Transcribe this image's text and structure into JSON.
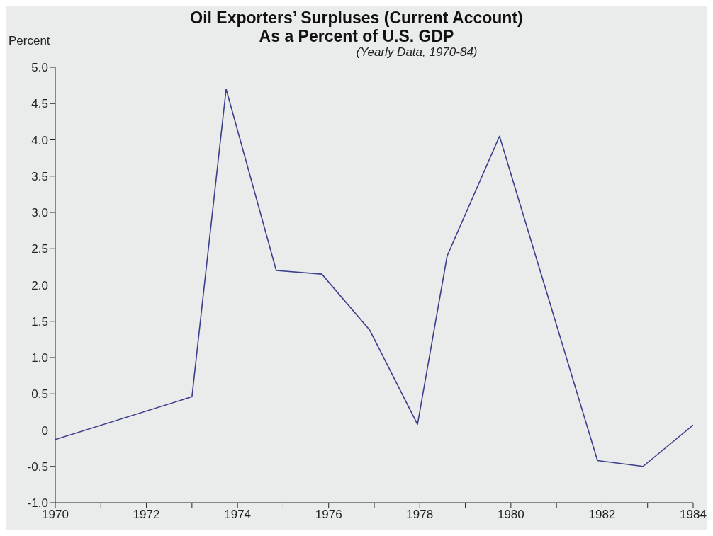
{
  "chart_data": {
    "type": "line",
    "title": "Oil Exporters’ Surpluses (Current Account)\nAs a Percent of U.S. GDP",
    "subtitle": "(Yearly Data, 1970-84)",
    "ylabel": "Percent",
    "x": [
      1970,
      1973,
      1973.75,
      1974.85,
      1975.85,
      1976.9,
      1977.95,
      1978.6,
      1979.75,
      1981.9,
      1982.9,
      1984
    ],
    "series": [
      {
        "color": "#3b3f8c",
        "values": [
          -0.13,
          0.46,
          4.7,
          2.2,
          2.15,
          1.38,
          0.08,
          2.4,
          4.05,
          -0.42,
          -0.5,
          0.07
        ]
      }
    ],
    "xlim": [
      1970,
      1984
    ],
    "xticks": [
      1970,
      {
        "value": 1971,
        "label": null
      },
      1972,
      {
        "value": 1973,
        "label": null
      },
      1974,
      {
        "value": 1975,
        "label": null
      },
      1976,
      {
        "value": 1977,
        "label": null
      },
      1978,
      {
        "value": 1979,
        "label": null
      },
      1980,
      {
        "value": 1981,
        "label": null
      },
      1982,
      {
        "value": 1983,
        "label": null
      },
      1984
    ],
    "ylim": [
      -1,
      5
    ],
    "yticks": [
      {
        "value": -1,
        "label": "-1.0"
      },
      -0.5,
      0,
      0.5,
      {
        "value": 1,
        "label": "1.0"
      },
      1.5,
      {
        "value": 2,
        "label": "2.0"
      },
      2.5,
      {
        "value": 3,
        "label": "3.0"
      },
      3.5,
      {
        "value": 4,
        "label": "4.0"
      },
      4.5,
      {
        "value": 5,
        "label": "5.0"
      }
    ],
    "ref_lines": [
      {
        "axis": "y",
        "value": 0,
        "color": "#000000"
      }
    ],
    "grid": false,
    "legend": false,
    "marker": "none",
    "line_style": "solid"
  }
}
